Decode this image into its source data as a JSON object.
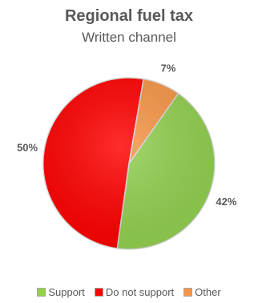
{
  "chart_data": {
    "type": "pie",
    "title": "Regional fuel tax",
    "subtitle": "Written channel",
    "categories": [
      "Support",
      "Do not support",
      "Other"
    ],
    "values": [
      42,
      50,
      7
    ],
    "labels": [
      "42%",
      "50%",
      "7%"
    ],
    "colors": [
      "#92d050",
      "#ff0000",
      "#f79646"
    ],
    "legend_position": "bottom"
  }
}
